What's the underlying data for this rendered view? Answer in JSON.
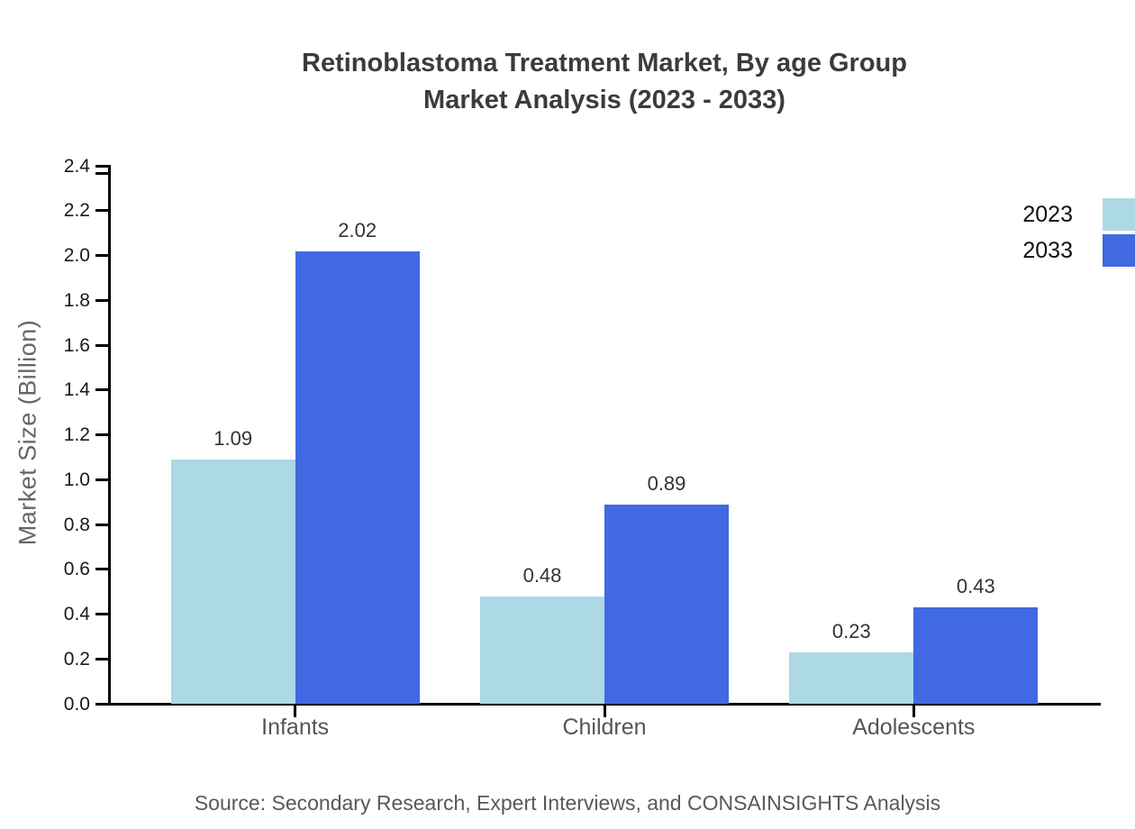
{
  "title": {
    "line1": "Retinoblastoma Treatment Market, By age Group",
    "line2": "Market Analysis (2023 - 2033)"
  },
  "y_axis_title": "Market Size (Billion)",
  "source_text": "Source: Secondary Research, Expert Interviews, and CONSAINSIGHTS Analysis",
  "colors": {
    "series_2023": "#ADD8E6",
    "series_2033": "#4169E1",
    "axis": "#000000",
    "title_text": "#3b3b3b",
    "category_text": "#555555",
    "source_text": "#595959"
  },
  "chart_data": {
    "type": "bar",
    "title": "Retinoblastoma Treatment Market, By age Group Market Analysis (2023 - 2033)",
    "categories": [
      "Infants",
      "Children",
      "Adolescents"
    ],
    "series": [
      {
        "name": "2023",
        "color": "#ADD8E6",
        "values": [
          1.09,
          0.48,
          0.23
        ]
      },
      {
        "name": "2033",
        "color": "#4169E1",
        "values": [
          2.02,
          0.89,
          0.43
        ]
      }
    ],
    "value_labels": [
      "1.09",
      "2.02",
      "0.48",
      "0.89",
      "0.23",
      "0.43"
    ],
    "xlabel": "",
    "ylabel": "Market Size (Billion)",
    "ylim": [
      0,
      2.4
    ],
    "ytick_step": 0.2,
    "ytick_labels": [
      "0.0",
      "0.2",
      "0.4",
      "0.6",
      "0.8",
      "1.0",
      "1.2",
      "1.4",
      "1.6",
      "1.8",
      "2.0",
      "2.2",
      "2.4"
    ],
    "grid": false,
    "legend_position": "top-right",
    "bar_value_decimals": 2
  }
}
